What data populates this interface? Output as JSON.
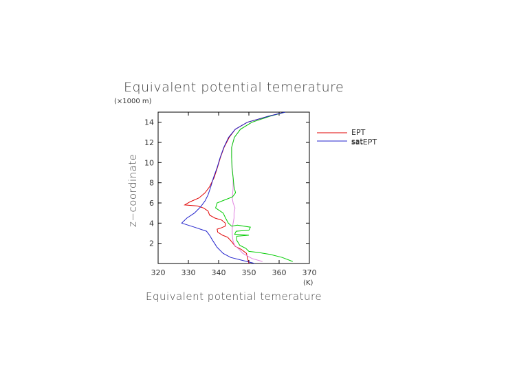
{
  "chart_data": {
    "type": "line",
    "title": "Equivalent potential temerature",
    "xlabel": "Equivalent potential temerature",
    "x_unit": "(K)",
    "ylabel": "z−coordinate",
    "y_unit": "(×1000 m)",
    "xlim": [
      320,
      370
    ],
    "ylim": [
      0,
      15
    ],
    "xticks": [
      "320",
      "330",
      "340",
      "350",
      "360",
      "370"
    ],
    "yticks": [
      "2",
      "4",
      "6",
      "8",
      "10",
      "12",
      "14"
    ],
    "legend_position": "right",
    "grid": false,
    "series": [
      {
        "name": "EPT",
        "color": "#e00000",
        "points": [
          [
            350,
            0
          ],
          [
            349.6,
            0.5
          ],
          [
            349.2,
            1
          ],
          [
            347.5,
            1.4
          ],
          [
            345.5,
            1.7
          ],
          [
            344.2,
            2.2
          ],
          [
            343,
            2.6
          ],
          [
            341.3,
            2.8
          ],
          [
            339.7,
            3.1
          ],
          [
            339.5,
            3.4
          ],
          [
            340.6,
            3.5
          ],
          [
            342.2,
            3.7
          ],
          [
            342.2,
            4
          ],
          [
            341,
            4.3
          ],
          [
            338.8,
            4.5
          ],
          [
            337,
            4.8
          ],
          [
            336.5,
            5.2
          ],
          [
            335,
            5.5
          ],
          [
            333,
            5.7
          ],
          [
            328.8,
            5.8
          ],
          [
            330.5,
            6.1
          ],
          [
            333.5,
            6.5
          ],
          [
            335.5,
            7
          ],
          [
            337,
            7.6
          ],
          [
            338.5,
            8.5
          ],
          [
            339.6,
            9.5
          ],
          [
            340.6,
            10.5
          ],
          [
            341.8,
            11.5
          ],
          [
            343.5,
            12.5
          ],
          [
            345.5,
            13.3
          ],
          [
            349.5,
            14
          ],
          [
            356.5,
            14.6
          ],
          [
            362,
            15
          ]
        ]
      },
      {
        "name": "satEPT",
        "color": "#e080e0",
        "points": [
          [
            354.5,
            0.2
          ],
          [
            351,
            0.5
          ],
          [
            348,
            1
          ],
          [
            346.8,
            1.4
          ],
          [
            345.3,
            1.8
          ],
          [
            344.8,
            2.2
          ],
          [
            344.6,
            2.6
          ],
          [
            344.5,
            3
          ],
          [
            344.5,
            3.5
          ],
          [
            344.8,
            4
          ],
          [
            345.1,
            4.5
          ],
          [
            345.1,
            5
          ],
          [
            345.4,
            5.5
          ],
          [
            344.8,
            6
          ],
          [
            344.5,
            6.5
          ],
          [
            344.8,
            7.5
          ],
          [
            344.8,
            8.5
          ],
          [
            344.5,
            9.5
          ],
          [
            344.3,
            10.5
          ],
          [
            344.3,
            11.5
          ],
          [
            345.2,
            12.5
          ],
          [
            347.2,
            13.3
          ],
          [
            351,
            14
          ],
          [
            357,
            14.6
          ],
          [
            362,
            15
          ]
        ]
      },
      {
        "name": "sat",
        "color": "#00cc00",
        "points": [
          [
            364.5,
            0.2
          ],
          [
            361,
            0.6
          ],
          [
            357,
            0.9
          ],
          [
            353,
            1.1
          ],
          [
            350,
            1.2
          ],
          [
            349,
            1.5
          ],
          [
            347,
            1.8
          ],
          [
            346,
            2.3
          ],
          [
            346,
            2.7
          ],
          [
            350,
            2.8
          ],
          [
            345.3,
            2.9
          ],
          [
            345.8,
            3.2
          ],
          [
            350,
            3.3
          ],
          [
            350.5,
            3.6
          ],
          [
            346.2,
            3.8
          ],
          [
            344.3,
            3.7
          ],
          [
            343.2,
            4
          ],
          [
            342.3,
            4.5
          ],
          [
            341.5,
            5
          ],
          [
            339,
            5.5
          ],
          [
            339.5,
            6
          ],
          [
            342,
            6.3
          ],
          [
            344.6,
            6.6
          ],
          [
            345.6,
            7
          ],
          [
            345.1,
            7.6
          ],
          [
            344.8,
            8.5
          ],
          [
            344.4,
            9.5
          ],
          [
            344.3,
            10.5
          ],
          [
            344.3,
            11.5
          ],
          [
            345.2,
            12.5
          ],
          [
            347.2,
            13.3
          ],
          [
            351,
            14
          ],
          [
            357,
            14.6
          ],
          [
            362,
            15
          ]
        ]
      },
      {
        "name": "",
        "color": "#2222cc",
        "points": [
          [
            352,
            0
          ],
          [
            348,
            0.3
          ],
          [
            344,
            0.6
          ],
          [
            341.5,
            1
          ],
          [
            339.5,
            1.6
          ],
          [
            338,
            2.3
          ],
          [
            337,
            2.8
          ],
          [
            336,
            3.2
          ],
          [
            332,
            3.6
          ],
          [
            327.8,
            4
          ],
          [
            329.5,
            4.5
          ],
          [
            332,
            5
          ],
          [
            334,
            5.6
          ],
          [
            335.5,
            6.2
          ],
          [
            336.5,
            6.8
          ],
          [
            337.3,
            7.5
          ],
          [
            338.3,
            8.5
          ],
          [
            339.5,
            9.5
          ],
          [
            340.5,
            10.5
          ],
          [
            341.7,
            11.5
          ],
          [
            343.3,
            12.5
          ],
          [
            345.5,
            13.3
          ],
          [
            349.5,
            14
          ],
          [
            356.5,
            14.6
          ],
          [
            362,
            15
          ]
        ]
      }
    ],
    "legend_overlap_text": "satEPT"
  }
}
